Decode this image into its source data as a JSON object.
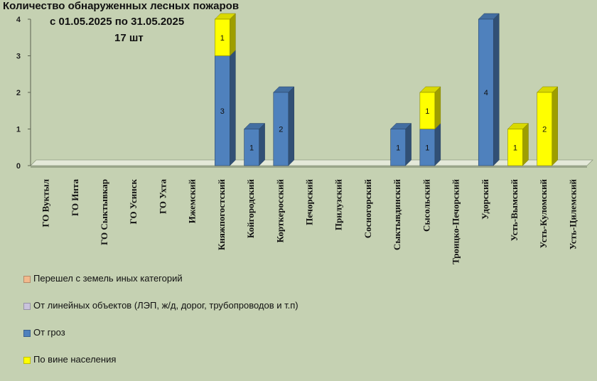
{
  "chart_data": {
    "type": "bar",
    "stacked": true,
    "title": "Количество обнаруженных лесных пожаров",
    "subtitle_lines": [
      "с 01.05.2025  по  31.05.2025",
      "17 шт"
    ],
    "xlabel": "",
    "ylabel": "",
    "ylim": [
      0,
      4
    ],
    "yticks": [
      "0",
      "1",
      "2",
      "3",
      "4"
    ],
    "grid": false,
    "legend_position": "bottom-left",
    "categories": [
      "ГО Вуктыл",
      "ГО Инта",
      "ГО Сыктывкар",
      "ГО Усинск",
      "ГО Ухта",
      "Ижемский",
      "Княжпогостский",
      "Койгородский",
      "Корткеросский",
      "Печорский",
      "Прилузский",
      "Сосногорский",
      "Сыктывдинский",
      "Сысольский",
      "Троицко-Печорский",
      "Удорский",
      "Усть-Вымский",
      "Усть-Куломский",
      "Усть-Цилемский"
    ],
    "series": [
      {
        "name": "Перешел с земель иных категорий",
        "color": "#f2b98c",
        "values": [
          0,
          0,
          0,
          0,
          0,
          0,
          0,
          0,
          0,
          0,
          0,
          0,
          0,
          0,
          0,
          0,
          0,
          0,
          0
        ]
      },
      {
        "name": "От линейных объектов (ЛЭП, ж/д, дорог,  трубопроводов  и т.п)",
        "color": "#c9c3dc",
        "values": [
          0,
          0,
          0,
          0,
          0,
          0,
          0,
          0,
          0,
          0,
          0,
          0,
          0,
          0,
          0,
          0,
          0,
          0,
          0
        ]
      },
      {
        "name": "От гроз",
        "color": "#4f81bd",
        "values": [
          0,
          0,
          0,
          0,
          0,
          0,
          3,
          1,
          2,
          0,
          0,
          0,
          1,
          1,
          0,
          4,
          0,
          0,
          0
        ]
      },
      {
        "name": "По вине населения",
        "color": "#ffff00",
        "values": [
          0,
          0,
          0,
          0,
          0,
          0,
          1,
          0,
          0,
          0,
          0,
          0,
          0,
          1,
          0,
          0,
          1,
          2,
          0
        ]
      }
    ]
  },
  "colors": {
    "background": "#c5d1b2",
    "floor_top": "#e4e9d9",
    "floor_front": "#9aa58a"
  }
}
